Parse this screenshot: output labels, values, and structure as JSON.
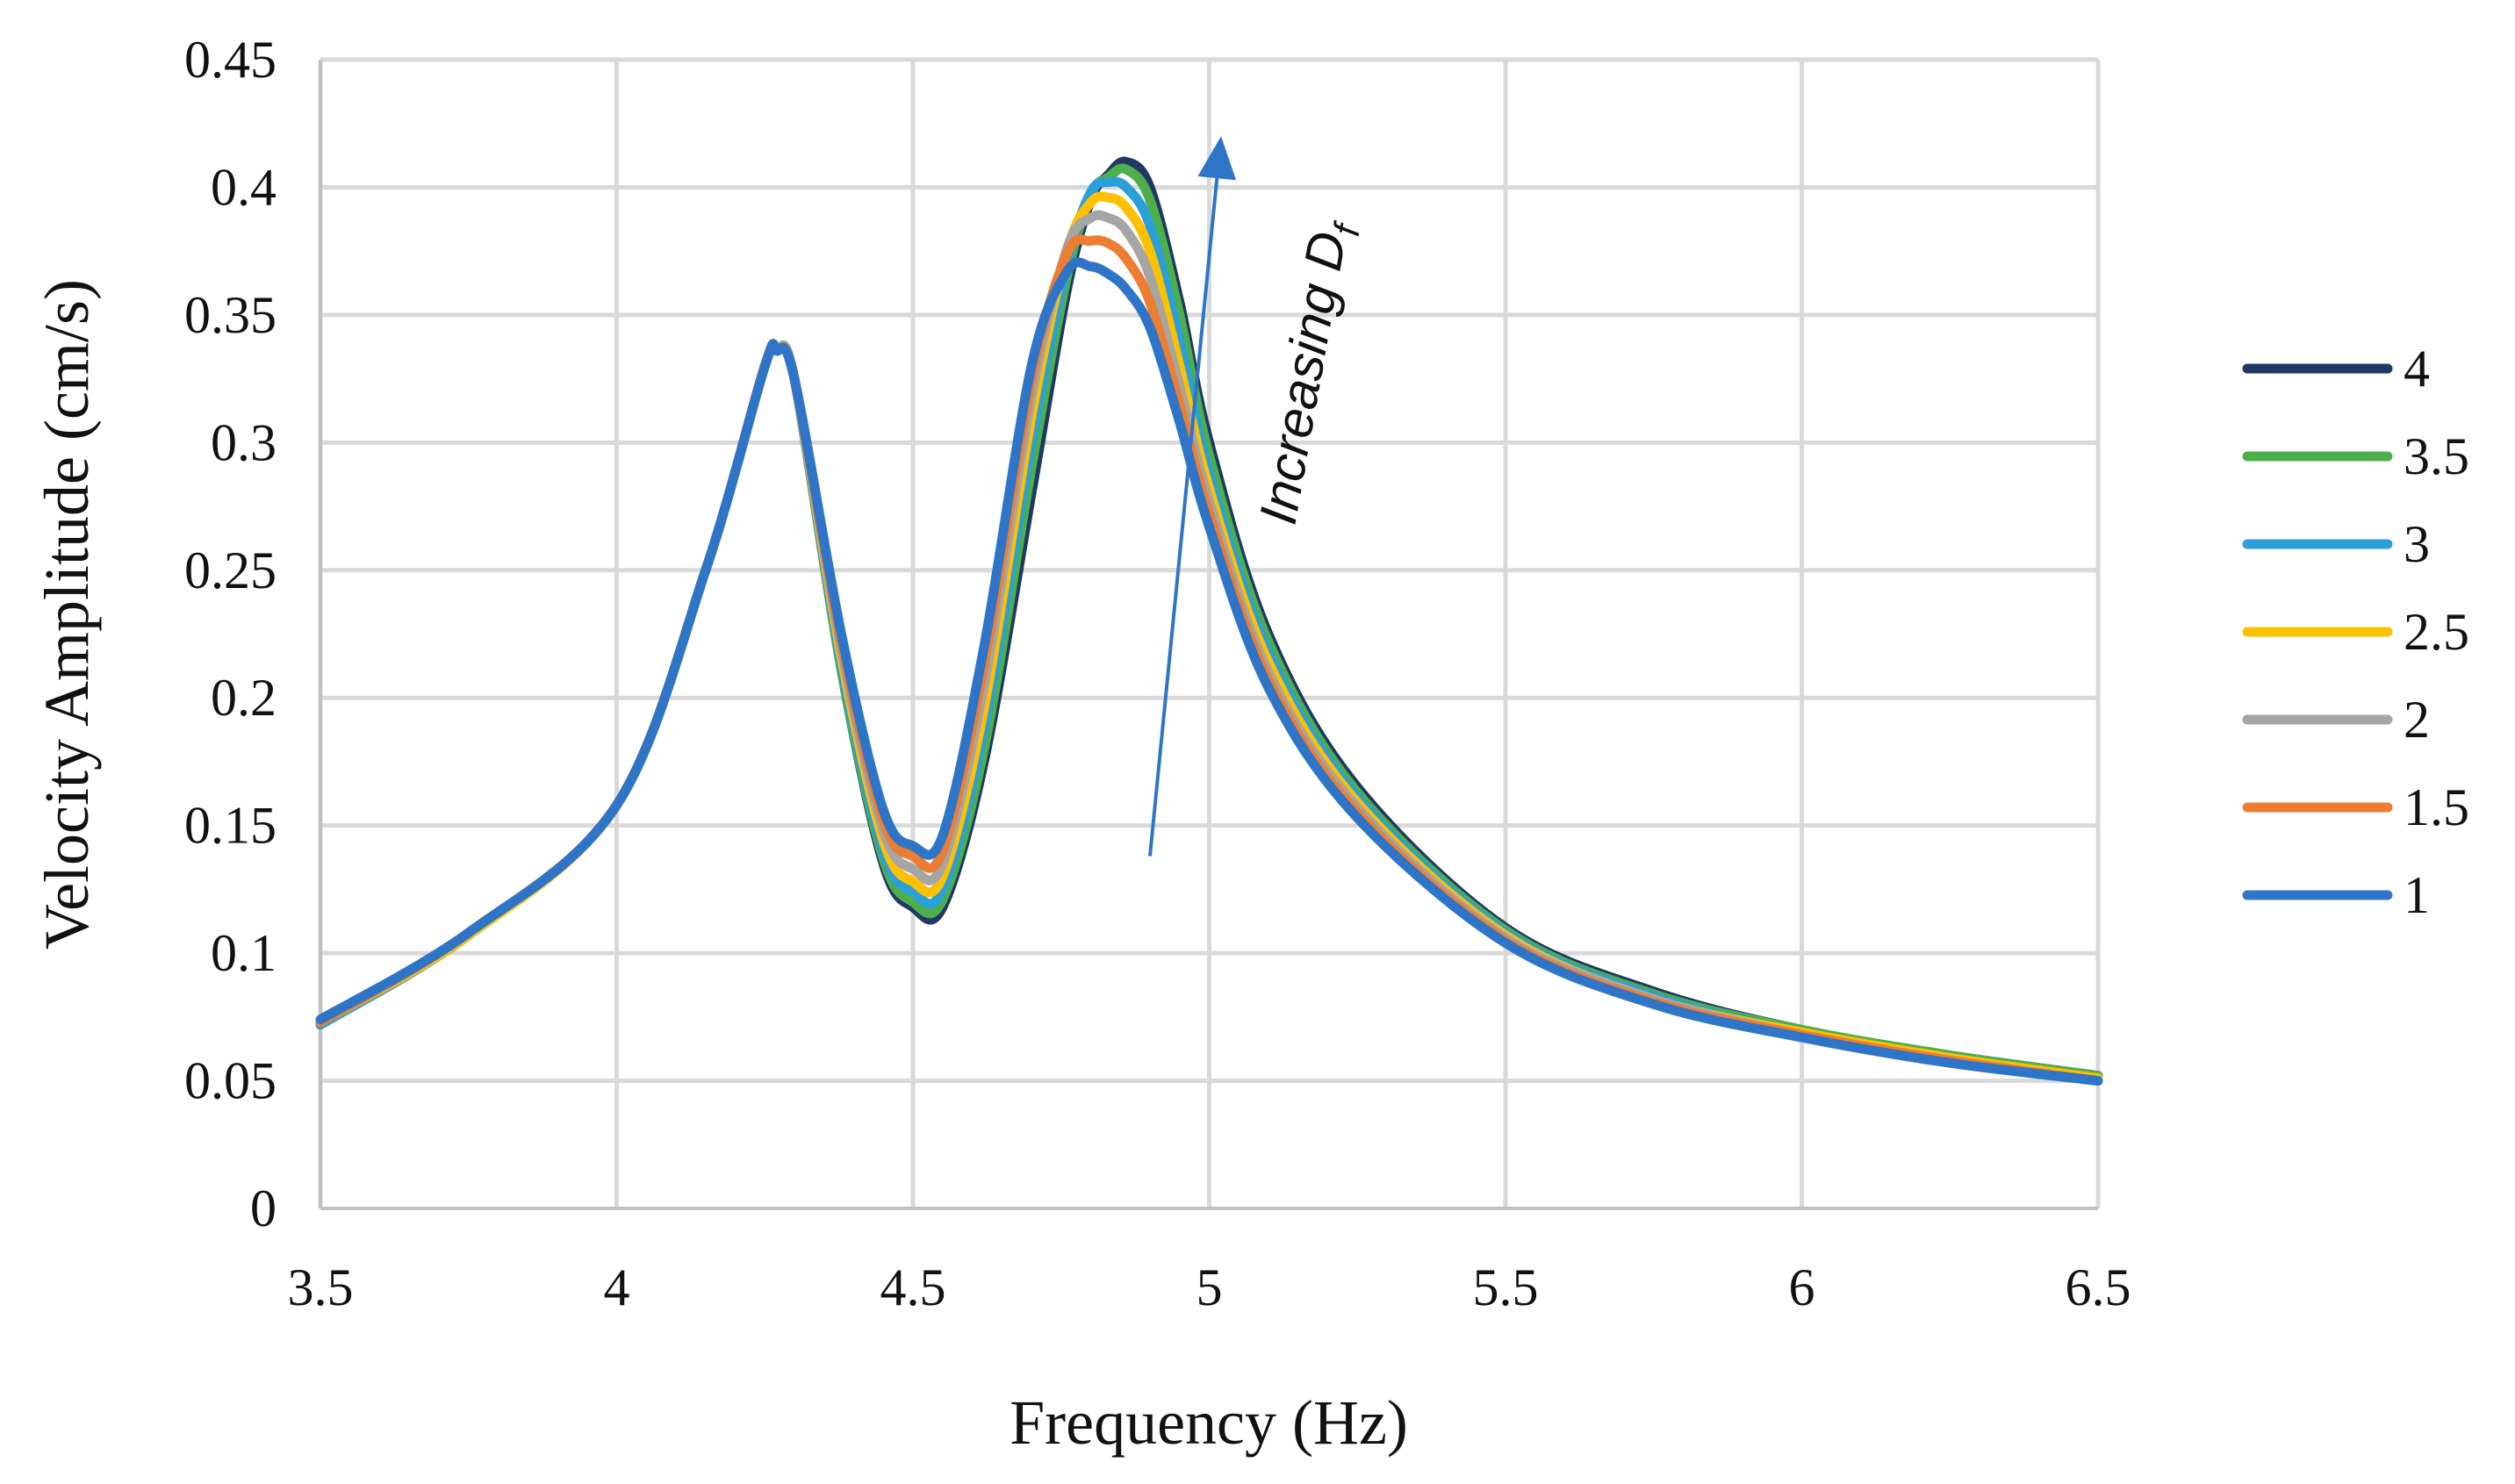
{
  "chart_data": {
    "type": "line",
    "title": "",
    "xlabel": "Frequency (Hz)",
    "ylabel": "Velocity Amplitude (cm/s)",
    "xlim": [
      3.5,
      6.5
    ],
    "ylim": [
      0,
      0.45
    ],
    "xticks": [
      "3.5",
      "4",
      "4.5",
      "5",
      "5.5",
      "6",
      "6.5"
    ],
    "yticks": [
      "0",
      "0.05",
      "0.1",
      "0.15",
      "0.2",
      "0.25",
      "0.3",
      "0.35",
      "0.4",
      "0.45"
    ],
    "grid": true,
    "legend_position": "right",
    "x": [
      3.5,
      3.75,
      4.0,
      4.15,
      4.25,
      4.27,
      4.3,
      4.38,
      4.45,
      4.5,
      4.55,
      4.62,
      4.7,
      4.76,
      4.8,
      4.83,
      4.86,
      4.9,
      4.95,
      5.0,
      5.1,
      5.25,
      5.5,
      5.75,
      6.0,
      6.25,
      6.5
    ],
    "series": [
      {
        "name": "4",
        "color": "#1f3864",
        "values": [
          0.072,
          0.107,
          0.158,
          0.25,
          0.33,
          0.336,
          0.325,
          0.21,
          0.135,
          0.118,
          0.118,
          0.175,
          0.28,
          0.36,
          0.395,
          0.405,
          0.41,
          0.4,
          0.355,
          0.3,
          0.225,
          0.165,
          0.11,
          0.085,
          0.07,
          0.06,
          0.052
        ]
      },
      {
        "name": "3.5",
        "color": "#4daf4a",
        "values": [
          0.072,
          0.107,
          0.158,
          0.25,
          0.33,
          0.336,
          0.325,
          0.21,
          0.137,
          0.12,
          0.121,
          0.18,
          0.29,
          0.365,
          0.397,
          0.404,
          0.407,
          0.395,
          0.35,
          0.295,
          0.222,
          0.163,
          0.109,
          0.084,
          0.07,
          0.06,
          0.052
        ]
      },
      {
        "name": "3",
        "color": "#2b9fd8",
        "values": [
          0.072,
          0.107,
          0.158,
          0.25,
          0.33,
          0.336,
          0.325,
          0.212,
          0.14,
          0.124,
          0.125,
          0.188,
          0.3,
          0.37,
          0.398,
          0.402,
          0.4,
          0.385,
          0.34,
          0.288,
          0.218,
          0.161,
          0.108,
          0.083,
          0.069,
          0.059,
          0.051
        ]
      },
      {
        "name": "2.5",
        "color": "#ffc000",
        "values": [
          0.073,
          0.107,
          0.158,
          0.25,
          0.33,
          0.336,
          0.325,
          0.215,
          0.144,
          0.128,
          0.13,
          0.196,
          0.31,
          0.375,
          0.394,
          0.396,
          0.392,
          0.375,
          0.33,
          0.282,
          0.214,
          0.159,
          0.107,
          0.082,
          0.069,
          0.059,
          0.051
        ]
      },
      {
        "name": "2",
        "color": "#a5a5a5",
        "values": [
          0.073,
          0.108,
          0.158,
          0.25,
          0.33,
          0.336,
          0.325,
          0.218,
          0.148,
          0.133,
          0.135,
          0.205,
          0.318,
          0.376,
          0.388,
          0.388,
          0.383,
          0.365,
          0.322,
          0.277,
          0.21,
          0.157,
          0.106,
          0.082,
          0.068,
          0.058,
          0.05
        ]
      },
      {
        "name": "1.5",
        "color": "#ed7d31",
        "values": [
          0.073,
          0.108,
          0.158,
          0.25,
          0.33,
          0.336,
          0.325,
          0.221,
          0.152,
          0.138,
          0.14,
          0.213,
          0.325,
          0.374,
          0.379,
          0.378,
          0.372,
          0.355,
          0.315,
          0.272,
          0.207,
          0.155,
          0.105,
          0.081,
          0.068,
          0.058,
          0.05
        ]
      },
      {
        "name": "1",
        "color": "#2e75c8",
        "values": [
          0.074,
          0.108,
          0.158,
          0.25,
          0.33,
          0.336,
          0.325,
          0.224,
          0.156,
          0.142,
          0.146,
          0.22,
          0.33,
          0.367,
          0.369,
          0.366,
          0.36,
          0.345,
          0.308,
          0.267,
          0.204,
          0.153,
          0.104,
          0.08,
          0.067,
          0.057,
          0.05
        ]
      }
    ],
    "annotations": [
      {
        "text": "Increasing D",
        "subscript": "f",
        "arrow_from": [
          4.9,
          0.138
        ],
        "arrow_to": [
          5.02,
          0.42
        ]
      }
    ]
  }
}
